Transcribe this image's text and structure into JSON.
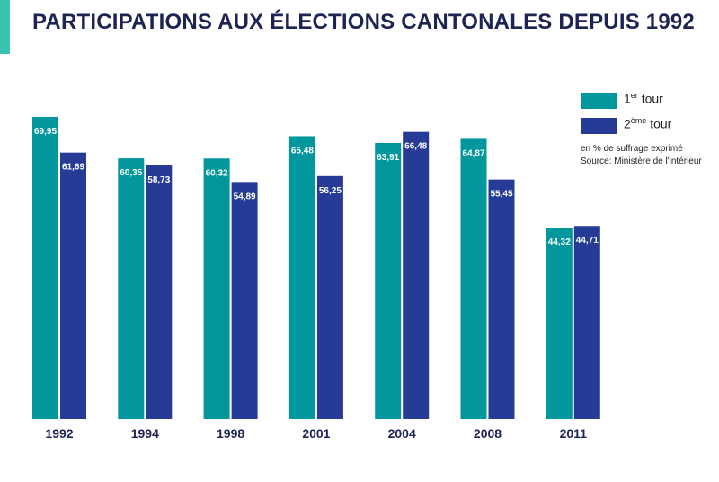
{
  "title": "PARTICIPATIONS AUX ÉLECTIONS CANTONALES DEPUIS 1992",
  "colors": {
    "accent": "#37c5b0",
    "tour1": "#02979c",
    "tour2": "#263b96",
    "title": "#1d2352"
  },
  "legend": {
    "tour1": {
      "base": "1",
      "sup": "er",
      "text": " tour"
    },
    "tour2": {
      "base": "2",
      "sup": "ème",
      "text": " tour"
    }
  },
  "notes": {
    "unit": "en % de suffrage exprimé",
    "source": "Source: Ministère de l'intérieur"
  },
  "chart_data": {
    "type": "bar",
    "title": "PARTICIPATIONS AUX ÉLECTIONS CANTONALES DEPUIS 1992",
    "categories": [
      "1992",
      "1994",
      "1998",
      "2001",
      "2004",
      "2008",
      "2011"
    ],
    "series": [
      {
        "name": "1er tour",
        "values": [
          69.95,
          60.35,
          60.32,
          65.48,
          63.91,
          64.87,
          44.32
        ],
        "labels": [
          "69,95",
          "60,35",
          "60,32",
          "65,48",
          "63,91",
          "64,87",
          "44,32"
        ]
      },
      {
        "name": "2ème tour",
        "values": [
          61.69,
          58.73,
          54.89,
          56.25,
          66.48,
          55.45,
          44.71
        ],
        "labels": [
          "61,69",
          "58,73",
          "54,89",
          "56,25",
          "66,48",
          "55,45",
          "44,71"
        ]
      }
    ],
    "ylim": [
      0,
      70
    ],
    "grid": false,
    "legend_position": "top-right"
  }
}
